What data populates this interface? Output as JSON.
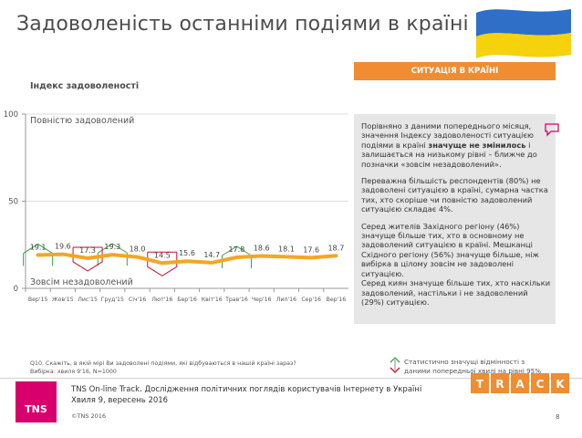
{
  "header": {
    "title": "Задоволеність останніми подіями в країні",
    "situation_label": "СИТУАЦІЯ В КРАЇНІ",
    "index_label": "Індекс задоволеності"
  },
  "chart_data": {
    "type": "line",
    "categories": [
      "Вер'15",
      "Жов'15",
      "Лис'15",
      "Груд'15",
      "Січ'16",
      "Лют'16",
      "Бер'16",
      "Квіт'16",
      "Трав'16",
      "Чер'16",
      "Лип'16",
      "Сер'16",
      "Вер'16"
    ],
    "values": [
      19.1,
      19.6,
      17.3,
      19.3,
      18.0,
      14.5,
      15.6,
      14.7,
      17.8,
      18.6,
      18.1,
      17.6,
      18.7
    ],
    "value_labels": [
      "19.1",
      "19.6",
      "17.3",
      "19.3",
      "18.0",
      "14.5",
      "15.6",
      "14.7",
      "17.8",
      "18.6",
      "18.1",
      "17.6",
      "18.7"
    ],
    "ylim": [
      0,
      100
    ],
    "yticks": [
      "0",
      "50",
      "100"
    ],
    "top_annotation": "Повністю задоволений",
    "bottom_annotation": "Зовсім незадоволений",
    "significant_up": [
      0,
      3,
      8
    ],
    "significant_down": [
      2,
      5
    ],
    "line_color": "#f5a623"
  },
  "sidebar": {
    "p1_a": "Порівняно з даними попереднього місяця, значення Індексу задоволеності ситуацією подіями в країні ",
    "p1_b": "значуще не змінилось",
    "p1_c": " і залишається на низькому рівні – ближче до позначки «зовсім незадоволений».",
    "p2": "Переважна більшість респондентів (80%) не задоволені ситуацією в країні, сумарна частка тих, хто скоріше чи повністю задоволений ситуацією складає 4%.",
    "p3": "Серед жителів Західного регіону (46%) значуще більше тих, хто в основному не задоволений ситуацією в країні. Мешканці Східного регіону (56%) значуще більше, ніж вибірка в цілому зовсім не задоволені ситуацією.",
    "p4": "Серед киян значуще більше тих, хто наскільки задоволений, настільки і не задоволений (29%) ситуацією."
  },
  "footnote": {
    "q": "Q10. Скажіть, в якій мірі Ви задоволені подіями, які відбуваються в нашій країні зараз?",
    "sample": "Вибірка: хвиля 9'16, N=1000"
  },
  "legend_note": "Статистично значущі відмінності з даними попередньої хвилі на рівні 95%",
  "footer": {
    "logo": "TNS",
    "line1": "TNS On-line Track. Дослідження політичних поглядів користувачів Інтернету в Україні",
    "line2": "Хвиля 9, вересень 2016",
    "copyright": "©TNS 2016",
    "page": "8",
    "track_letters": [
      "T",
      "R",
      "A",
      "C",
      "K"
    ]
  },
  "colors": {
    "orange": "#f08c32",
    "magenta": "#d7006d",
    "up_green": "#3aa34a",
    "down_red": "#c8102e"
  }
}
